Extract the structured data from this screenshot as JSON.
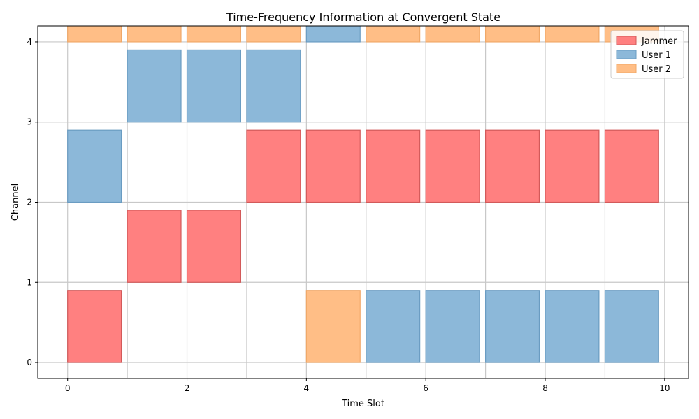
{
  "chart_data": {
    "type": "bar",
    "title": "Time-Frequency Information at Convergent State",
    "xlabel": "Time Slot",
    "ylabel": "Channel",
    "xlim": [
      -0.5,
      10.4
    ],
    "ylim": [
      -0.2,
      4.2
    ],
    "xticks": [
      0,
      2,
      4,
      6,
      8,
      10
    ],
    "yticks": [
      0,
      1,
      2,
      3,
      4
    ],
    "grid": true,
    "legend_position": "top-right",
    "bar_width": 0.9,
    "bar_height": 0.9,
    "series": [
      {
        "name": "Jammer",
        "color": "#ff8080",
        "edge_color": "#d25a5a",
        "points": [
          {
            "slot": 0,
            "channel": 0
          },
          {
            "slot": 1,
            "channel": 1
          },
          {
            "slot": 2,
            "channel": 1
          },
          {
            "slot": 3,
            "channel": 2
          },
          {
            "slot": 4,
            "channel": 2
          },
          {
            "slot": 5,
            "channel": 2
          },
          {
            "slot": 6,
            "channel": 2
          },
          {
            "slot": 7,
            "channel": 2
          },
          {
            "slot": 8,
            "channel": 2
          },
          {
            "slot": 9,
            "channel": 2
          }
        ]
      },
      {
        "name": "User 1",
        "color": "#8cb8d9",
        "edge_color": "#6a9cc2",
        "points": [
          {
            "slot": 0,
            "channel": 2
          },
          {
            "slot": 1,
            "channel": 3
          },
          {
            "slot": 2,
            "channel": 3
          },
          {
            "slot": 3,
            "channel": 3
          },
          {
            "slot": 4,
            "channel": 4
          },
          {
            "slot": 5,
            "channel": 0
          },
          {
            "slot": 6,
            "channel": 0
          },
          {
            "slot": 7,
            "channel": 0
          },
          {
            "slot": 8,
            "channel": 0
          },
          {
            "slot": 9,
            "channel": 0
          }
        ]
      },
      {
        "name": "User 2",
        "color": "#ffbe86",
        "edge_color": "#f0a868",
        "points": [
          {
            "slot": 0,
            "channel": 4
          },
          {
            "slot": 1,
            "channel": 4
          },
          {
            "slot": 2,
            "channel": 4
          },
          {
            "slot": 3,
            "channel": 4
          },
          {
            "slot": 4,
            "channel": 0
          },
          {
            "slot": 5,
            "channel": 4
          },
          {
            "slot": 6,
            "channel": 4
          },
          {
            "slot": 7,
            "channel": 4
          },
          {
            "slot": 8,
            "channel": 4
          },
          {
            "slot": 9,
            "channel": 4
          }
        ]
      }
    ]
  }
}
